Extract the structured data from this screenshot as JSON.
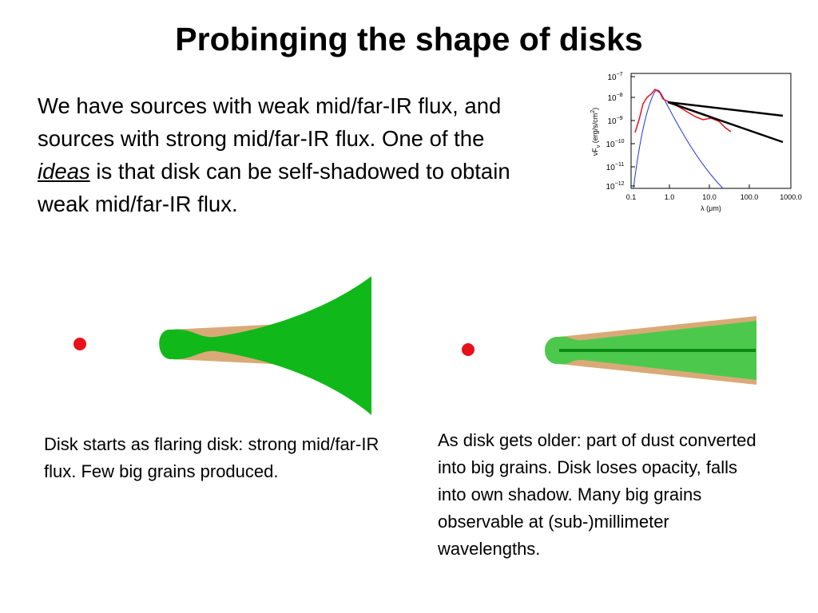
{
  "slide": {
    "title": "Probinging the shape of disks",
    "intro": {
      "before": "We have sources with weak mid/far-IR flux, and sources with strong mid/far-IR flux. One of the",
      "emphasis": "ideas",
      "after": "is that disk can be self-shadowed to obtain weak mid/far-IR flux."
    },
    "sed_plot": {
      "yticks": [
        {
          "base": "10",
          "exponent": "−7"
        },
        {
          "base": "10",
          "exponent": "−8"
        },
        {
          "base": "10",
          "exponent": "−9"
        },
        {
          "base": "10",
          "exponent": "−10"
        },
        {
          "base": "10",
          "exponent": "−11"
        },
        {
          "base": "10",
          "exponent": "−12"
        }
      ],
      "xticks": [
        "0.1",
        "1.0",
        "10.0",
        "100.0",
        "1000.0"
      ],
      "x_label": "λ (μm)",
      "y_label": {
        "main": "νF",
        "sub": "ν",
        "rest": " (erg/s/cm",
        "sup": "2",
        "end": ")"
      }
    },
    "captions": [
      "Disk starts as flaring disk: strong mid/far-IR flux. Few big grains produced.",
      "As disk gets older: part of dust converted into big grains. Disk loses opacity, falls into own shadow. Many big grains observable at (sub-)millimeter wavelengths."
    ]
  }
}
